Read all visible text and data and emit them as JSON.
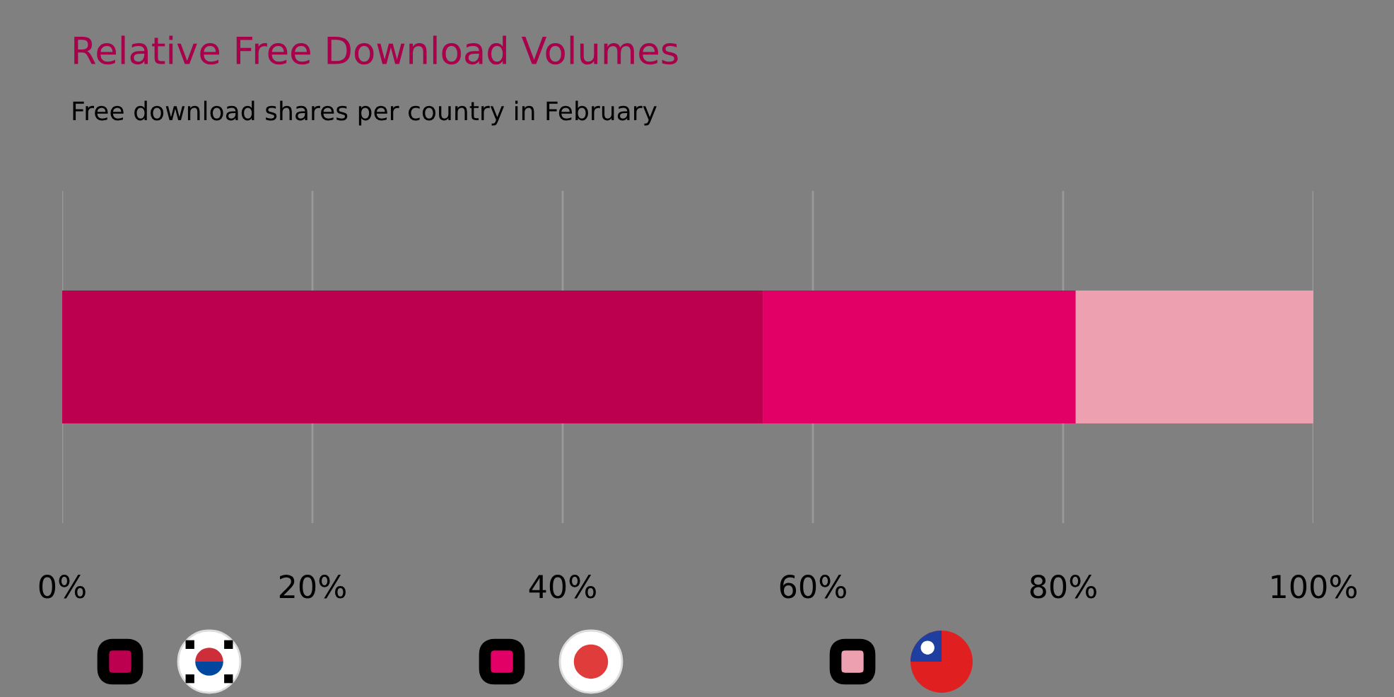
{
  "chart_data": {
    "type": "bar",
    "orientation": "horizontal",
    "stacked": true,
    "title": "Relative Free Download Volumes",
    "subtitle": "Free download shares per country in February",
    "categories": [
      null
    ],
    "series": [
      {
        "color": "#bc004f",
        "values": [
          56
        ]
      },
      {
        "color": "#e30066",
        "values": [
          25
        ]
      },
      {
        "color": "#eda0b0",
        "values": [
          19
        ]
      }
    ],
    "xlim": [
      0,
      100
    ],
    "xticks": [
      {
        "value": 0,
        "label": "0%"
      },
      {
        "value": 20,
        "label": "20%"
      },
      {
        "value": 40,
        "label": "40%"
      },
      {
        "value": 60,
        "label": "60%"
      },
      {
        "value": 80,
        "label": "80%"
      },
      {
        "value": 100,
        "label": "100%"
      }
    ],
    "grid": "x"
  }
}
